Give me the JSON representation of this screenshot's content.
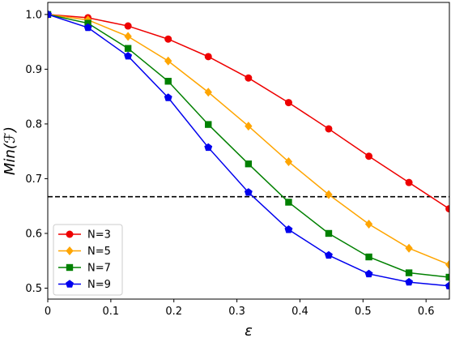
{
  "chart_data": {
    "type": "line",
    "xlabel": "ε",
    "ylabel": "Min(ℱ)",
    "xlim": [
      0,
      0.637
    ],
    "ylim": [
      0.48,
      1.022
    ],
    "xticks": [
      "0",
      "0.1",
      "0.2",
      "0.3",
      "0.4",
      "0.5",
      "0.6"
    ],
    "xtick_values": [
      0,
      0.1,
      0.2,
      0.3,
      0.4,
      0.5,
      0.6
    ],
    "yticks": [
      "0.5",
      "0.6",
      "0.7",
      "0.8",
      "0.9",
      "1.0"
    ],
    "ytick_values": [
      0.5,
      0.6,
      0.7,
      0.8,
      0.9,
      1.0
    ],
    "grid": false,
    "legend_position": "lower-left",
    "reference_line": {
      "y": 0.667,
      "style": "dashed",
      "color": "#000000"
    },
    "x": [
      0,
      0.0637,
      0.1273,
      0.191,
      0.2546,
      0.3183,
      0.382,
      0.4456,
      0.5093,
      0.5729,
      0.6366
    ],
    "series": [
      {
        "name": "N=3",
        "color": "#ee0000",
        "marker": "circle",
        "values": [
          1.0,
          0.994,
          0.979,
          0.955,
          0.923,
          0.884,
          0.839,
          0.791,
          0.741,
          0.693,
          0.645
        ]
      },
      {
        "name": "N=5",
        "color": "#ffa500",
        "marker": "diamond",
        "values": [
          1.0,
          0.99,
          0.96,
          0.915,
          0.858,
          0.796,
          0.731,
          0.671,
          0.617,
          0.573,
          0.543
        ]
      },
      {
        "name": "N=7",
        "color": "#008000",
        "marker": "square",
        "values": [
          1.0,
          0.984,
          0.938,
          0.878,
          0.799,
          0.727,
          0.657,
          0.6,
          0.557,
          0.528,
          0.52
        ]
      },
      {
        "name": "N=9",
        "color": "#0000ee",
        "marker": "pentagon",
        "values": [
          1.0,
          0.976,
          0.924,
          0.848,
          0.757,
          0.675,
          0.607,
          0.56,
          0.526,
          0.511,
          0.504
        ]
      }
    ]
  }
}
